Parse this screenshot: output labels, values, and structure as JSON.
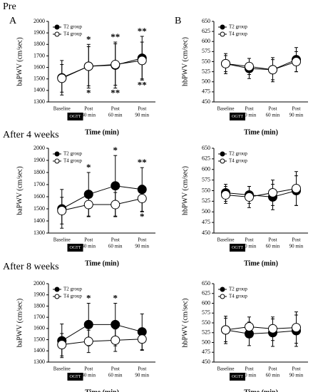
{
  "headings": [
    "Pre",
    "After 4 weeks",
    "After 8 weeks"
  ],
  "chart_data": [
    {
      "type": "line",
      "label": "A",
      "ylabel": "baPWV (cm/sec)",
      "xlabel": "Time (min)",
      "box_label": "OGTT",
      "categories": [
        [
          "Baseline"
        ],
        [
          "Post",
          "30 min"
        ],
        [
          "Post",
          "60 min"
        ],
        [
          "Post",
          "90 min"
        ]
      ],
      "ylim": [
        1300,
        2000
      ],
      "yticks": [
        1300,
        1400,
        1500,
        1600,
        1700,
        1800,
        1900,
        2000
      ],
      "legend": "upper left",
      "series": [
        {
          "name": "T2 group",
          "color": "#000000",
          "values": [
            1510,
            1610,
            1620,
            1680
          ],
          "errors": [
            150,
            190,
            200,
            190
          ]
        },
        {
          "name": "T4 group",
          "color": "#ffffff",
          "values": [
            1505,
            1610,
            1625,
            1660
          ],
          "errors": [
            120,
            170,
            180,
            160
          ]
        }
      ],
      "annotations": [
        {
          "text": "*",
          "category": 1,
          "position": "above"
        },
        {
          "text": "*",
          "category": 1,
          "position": "below"
        },
        {
          "text": "**",
          "category": 2,
          "position": "above"
        },
        {
          "text": "**",
          "category": 2,
          "position": "below"
        },
        {
          "text": "**",
          "category": 3,
          "position": "above"
        },
        {
          "text": "**",
          "category": 3,
          "position": "below"
        }
      ]
    },
    {
      "type": "line",
      "label": "B",
      "ylabel": "hbPWV (cm/sec)",
      "xlabel": "Time (min)",
      "box_label": "OGTT",
      "categories": [
        [
          "Baseline"
        ],
        [
          "Post",
          "30 min"
        ],
        [
          "Post",
          "60 min"
        ],
        [
          "Post",
          "90 min"
        ]
      ],
      "ylim": [
        450,
        650
      ],
      "yticks": [
        450,
        475,
        500,
        525,
        550,
        575,
        600,
        625,
        650
      ],
      "legend": "upper left",
      "series": [
        {
          "name": "T2 group",
          "color": "#000000",
          "values": [
            545,
            533,
            530,
            555
          ],
          "errors": [
            25,
            25,
            30,
            30
          ]
        },
        {
          "name": "T4 group",
          "color": "#ffffff",
          "values": [
            545,
            538,
            530,
            550
          ],
          "errors": [
            20,
            20,
            25,
            25
          ]
        }
      ]
    },
    {
      "type": "line",
      "ylabel": "baPWV (cm/sec)",
      "xlabel": "Time (min)",
      "box_label": "OGTT",
      "categories": [
        [
          "Baseline"
        ],
        [
          "Post",
          "30 min"
        ],
        [
          "Post",
          "60 min"
        ],
        [
          "Post",
          "90 min"
        ]
      ],
      "ylim": [
        1300,
        2000
      ],
      "yticks": [
        1300,
        1400,
        1500,
        1600,
        1700,
        1800,
        1900,
        2000
      ],
      "legend": "upper left",
      "series": [
        {
          "name": "T2 group",
          "color": "#000000",
          "values": [
            1500,
            1620,
            1690,
            1660
          ],
          "errors": [
            160,
            180,
            250,
            180
          ]
        },
        {
          "name": "T4 group",
          "color": "#ffffff",
          "values": [
            1485,
            1535,
            1535,
            1585
          ],
          "errors": [
            110,
            100,
            100,
            110
          ]
        }
      ],
      "annotations": [
        {
          "text": "*",
          "category": 1,
          "position": "above"
        },
        {
          "text": "*",
          "category": 2,
          "position": "above"
        },
        {
          "text": "**",
          "category": 3,
          "position": "above"
        },
        {
          "text": "*",
          "category": 3,
          "position": "below"
        }
      ]
    },
    {
      "type": "line",
      "ylabel": "hbPWV (cm/sec)",
      "xlabel": "Time (min)",
      "box_label": "OGTT",
      "categories": [
        [
          "Baseline"
        ],
        [
          "Post",
          "30 min"
        ],
        [
          "Post",
          "60 min"
        ],
        [
          "Post",
          "90 min"
        ]
      ],
      "ylim": [
        450,
        650
      ],
      "yticks": [
        450,
        475,
        500,
        525,
        550,
        575,
        600,
        625,
        650
      ],
      "legend": "upper left",
      "series": [
        {
          "name": "T2 group",
          "color": "#000000",
          "values": [
            545,
            540,
            535,
            550
          ],
          "errors": [
            20,
            20,
            30,
            35
          ]
        },
        {
          "name": "T4 group",
          "color": "#ffffff",
          "values": [
            540,
            535,
            545,
            555
          ],
          "errors": [
            20,
            25,
            30,
            40
          ]
        }
      ]
    },
    {
      "type": "line",
      "ylabel": "baPWV (cm/sec)",
      "xlabel": "Time (min)",
      "box_label": "OGTT",
      "categories": [
        [
          "Baseline"
        ],
        [
          "Post",
          "30 min"
        ],
        [
          "Post",
          "60 min"
        ],
        [
          "Post",
          "90 min"
        ]
      ],
      "ylim": [
        1300,
        2000
      ],
      "yticks": [
        1300,
        1400,
        1500,
        1600,
        1700,
        1800,
        1900,
        2000
      ],
      "legend": "upper left",
      "series": [
        {
          "name": "T2 group",
          "color": "#000000",
          "values": [
            1490,
            1635,
            1635,
            1570
          ],
          "errors": [
            150,
            190,
            190,
            160
          ]
        },
        {
          "name": "T4 group",
          "color": "#ffffff",
          "values": [
            1455,
            1485,
            1495,
            1505
          ],
          "errors": [
            100,
            100,
            100,
            100
          ]
        }
      ],
      "annotations": [
        {
          "text": "*",
          "category": 1,
          "position": "above"
        },
        {
          "text": "*",
          "category": 2,
          "position": "above"
        }
      ]
    },
    {
      "type": "line",
      "ylabel": "hbPWV (cm/sec)",
      "xlabel": "Time (min)",
      "box_label": "OGTT",
      "categories": [
        [
          "Baseline"
        ],
        [
          "Post",
          "30 min"
        ],
        [
          "Post",
          "60 min"
        ],
        [
          "Post",
          "90 min"
        ]
      ],
      "ylim": [
        450,
        650
      ],
      "yticks": [
        450,
        475,
        500,
        525,
        550,
        575,
        600,
        625,
        650
      ],
      "legend": "upper left",
      "series": [
        {
          "name": "T2 group",
          "color": "#000000",
          "values": [
            532,
            522,
            525,
            530
          ],
          "errors": [
            35,
            30,
            35,
            40
          ]
        },
        {
          "name": "T4 group",
          "color": "#ffffff",
          "values": [
            532,
            540,
            535,
            538
          ],
          "errors": [
            30,
            25,
            30,
            40
          ]
        }
      ]
    }
  ]
}
